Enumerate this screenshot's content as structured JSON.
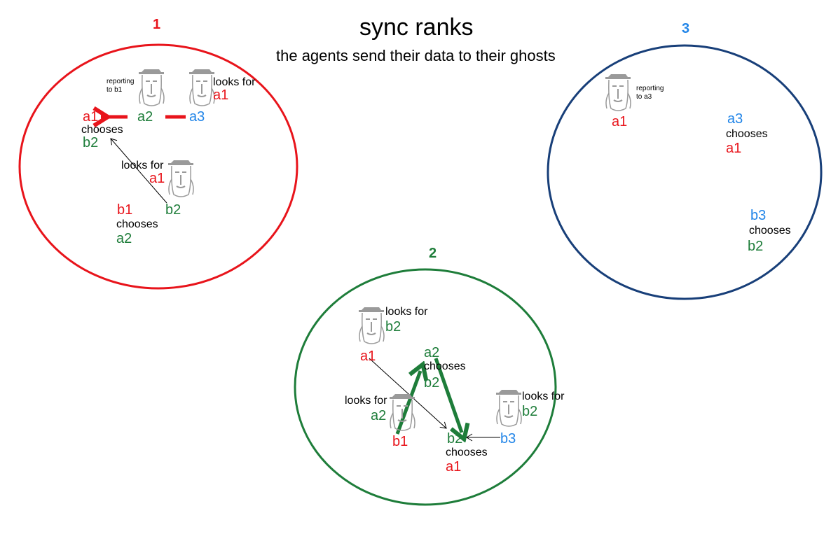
{
  "title": "sync ranks",
  "subtitle": "the agents send their data to their ghosts",
  "colors": {
    "red": "#e8141b",
    "green": "#1e7d3a",
    "blue": "#2185e8",
    "navy": "#183f79",
    "gray": "#8a8a8a",
    "black": "#000000"
  },
  "ranks": [
    {
      "label": "1",
      "color": "#e8141b"
    },
    {
      "label": "2",
      "color": "#1e7d3a"
    },
    {
      "label": "3",
      "color": "#2185e8"
    }
  ],
  "rank1": {
    "a1": "a1",
    "a2": "a2",
    "a3": "a3",
    "a1_chooses": "chooses",
    "a1_choice": "b2",
    "b1": "b1",
    "b1_chooses": "chooses",
    "b1_choice": "a2",
    "b2": "b2",
    "a2_ghost_note": "reporting\nto b1",
    "a3_looks_for": "looks for",
    "a3_target": "a1",
    "b2_looks_for": "looks for",
    "b2_target": "a1"
  },
  "rank2": {
    "a1": "a1",
    "a1_looks_for": "looks for",
    "a1_target": "b2",
    "a2": "a2",
    "a2_chooses": "chooses",
    "a2_choice": "b2",
    "b1": "b1",
    "b1_looks_for": "looks for",
    "b1_target": "a2",
    "b2": "b2",
    "b2_chooses": "chooses",
    "b2_choice": "a1",
    "b3": "b3",
    "b3_looks_for": "looks for",
    "b3_target": "b2"
  },
  "rank3": {
    "a1": "a1",
    "a1_ghost_note": "reporting\nto a3",
    "a3": "a3",
    "a3_chooses": "chooses",
    "a3_choice": "a1",
    "b3": "b3",
    "b3_chooses": "chooses",
    "b3_choice": "b2"
  }
}
